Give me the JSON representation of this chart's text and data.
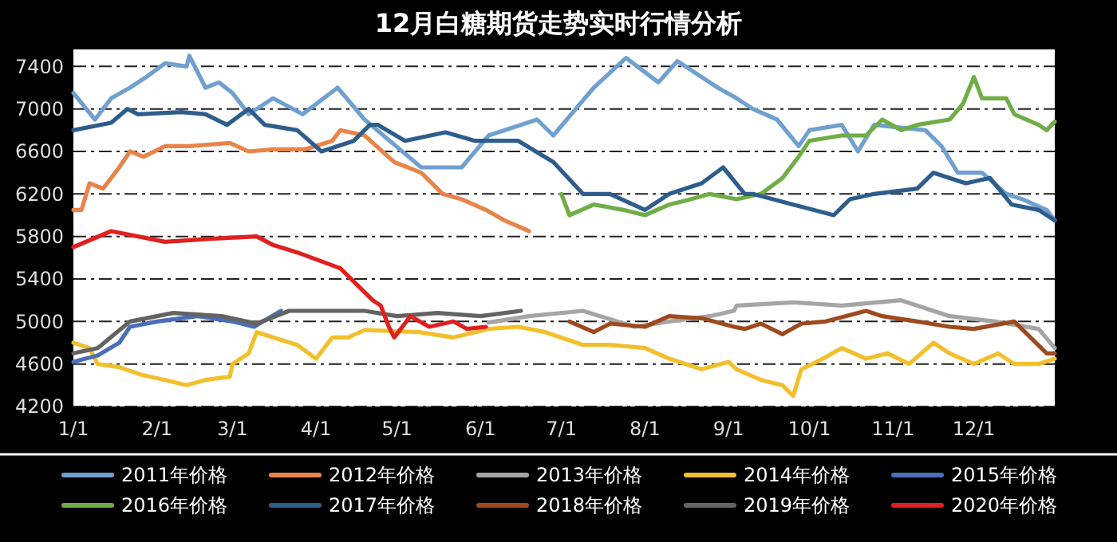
{
  "chart_data": {
    "type": "line",
    "title": "12月白糖期货走势实时行情分析",
    "xlim": [
      "--01-01",
      "--12-31"
    ],
    "xticks": [
      {
        "value": "--01-01",
        "label": "1/1"
      },
      {
        "value": "--02-01",
        "label": "2/1"
      },
      {
        "value": "--03-01",
        "label": "3/1"
      },
      {
        "value": "--04-01",
        "label": "4/1"
      },
      {
        "value": "--05-01",
        "label": "5/1"
      },
      {
        "value": "--06-01",
        "label": "6/1"
      },
      {
        "value": "--07-01",
        "label": "7/1"
      },
      {
        "value": "--08-01",
        "label": "8/1"
      },
      {
        "value": "--09-01",
        "label": "9/1"
      },
      {
        "value": "--10-01",
        "label": "10/1"
      },
      {
        "value": "--11-01",
        "label": "11/1"
      },
      {
        "value": "--12-01",
        "label": "12/1"
      }
    ],
    "ylim": [
      4200,
      7560
    ],
    "yticks": [
      4200,
      4600,
      5000,
      5400,
      5800,
      6200,
      6600,
      7000,
      7400
    ],
    "grid": "y",
    "legend": "bottom",
    "series": [
      {
        "name": "2011年价格",
        "color": "#6fa0d0",
        "x": [
          "--01-01",
          "--01-09",
          "--01-15",
          "--01-22",
          "--01-28",
          "--02-04",
          "--02-12",
          "--02-13",
          "--02-19",
          "--02-24",
          "--03-01",
          "--03-07",
          "--03-16",
          "--03-27",
          "--04-09",
          "--04-19",
          "--05-10",
          "--05-25",
          "--06-04",
          "--06-22",
          "--06-28",
          "--07-13",
          "--07-25",
          "--08-06",
          "--08-13",
          "--08-22",
          "--08-28",
          "--09-04",
          "--09-10",
          "--09-19",
          "--09-27",
          "--10-01",
          "--10-13",
          "--10-19",
          "--10-25",
          "--11-13",
          "--11-19",
          "--11-25",
          "--12-04",
          "--12-13",
          "--12-19",
          "--12-28",
          "--12-31"
        ],
        "values": [
          7150,
          6900,
          7100,
          7200,
          7300,
          7430,
          7400,
          7500,
          7200,
          7250,
          7150,
          6950,
          7100,
          6950,
          7200,
          6900,
          6450,
          6450,
          6750,
          6900,
          6750,
          7200,
          7480,
          7250,
          7450,
          7300,
          7200,
          7100,
          7000,
          6900,
          6650,
          6800,
          6850,
          6600,
          6850,
          6800,
          6650,
          6400,
          6400,
          6200,
          6150,
          6050,
          5950
        ]
      },
      {
        "name": "2012年价格",
        "color": "#e8844a",
        "x": [
          "--01-01",
          "--01-04",
          "--01-07",
          "--01-12",
          "--01-18",
          "--01-22",
          "--01-27",
          "--02-04",
          "--02-13",
          "--02-28",
          "--03-07",
          "--03-16",
          "--03-28",
          "--04-07",
          "--04-10",
          "--04-19",
          "--04-30",
          "--05-10",
          "--05-18",
          "--05-25",
          "--06-03",
          "--06-10",
          "--06-19"
        ],
        "values": [
          6050,
          6050,
          6300,
          6250,
          6450,
          6600,
          6550,
          6650,
          6650,
          6680,
          6600,
          6620,
          6620,
          6700,
          6800,
          6750,
          6500,
          6400,
          6200,
          6150,
          6050,
          5950,
          5850
        ]
      },
      {
        "name": "2013年价格",
        "color": "#a5a5a5",
        "x": [
          "--06-04",
          "--06-19",
          "--07-09",
          "--07-28",
          "--08-10",
          "--08-25",
          "--09-03",
          "--09-04",
          "--09-25",
          "--10-13",
          "--11-04",
          "--11-22",
          "--12-09",
          "--12-25",
          "--12-31"
        ],
        "values": [
          4990,
          5050,
          5100,
          4950,
          5000,
          5050,
          5100,
          5150,
          5180,
          5150,
          5200,
          5050,
          5000,
          4930,
          4750
        ]
      },
      {
        "name": "2014年价格",
        "color": "#f2c02c",
        "x": [
          "--01-01",
          "--01-07",
          "--01-10",
          "--01-18",
          "--01-26",
          "--02-04",
          "--02-12",
          "--02-19",
          "--02-28",
          "--03-01",
          "--03-07",
          "--03-10",
          "--03-16",
          "--03-25",
          "--04-01",
          "--04-07",
          "--04-13",
          "--04-19",
          "--05-09",
          "--05-22",
          "--06-04",
          "--06-15",
          "--06-25",
          "--07-09",
          "--07-19",
          "--08-01",
          "--08-10",
          "--08-22",
          "--09-01",
          "--09-04",
          "--09-13",
          "--09-21",
          "--09-25",
          "--09-28",
          "--10-06",
          "--10-13",
          "--10-22",
          "--10-30",
          "--11-07",
          "--11-16",
          "--11-22",
          "--12-01",
          "--12-10",
          "--12-16",
          "--12-25",
          "--12-31"
        ],
        "values": [
          4800,
          4750,
          4600,
          4570,
          4500,
          4450,
          4400,
          4450,
          4480,
          4600,
          4700,
          4900,
          4850,
          4780,
          4650,
          4850,
          4850,
          4920,
          4900,
          4850,
          4930,
          4950,
          4900,
          4780,
          4780,
          4750,
          4650,
          4550,
          4620,
          4550,
          4450,
          4400,
          4300,
          4550,
          4650,
          4750,
          4650,
          4700,
          4600,
          4800,
          4700,
          4600,
          4700,
          4600,
          4600,
          4650
        ]
      },
      {
        "name": "2015年价格",
        "color": "#4a6fb8",
        "x": [
          "--01-01",
          "--01-10",
          "--01-18",
          "--01-22",
          "--02-01",
          "--02-16",
          "--03-01",
          "--03-09",
          "--03-19"
        ],
        "values": [
          4620,
          4680,
          4800,
          4950,
          5000,
          5050,
          5000,
          4950,
          5100
        ]
      },
      {
        "name": "2016年价格",
        "color": "#70ad47",
        "x": [
          "--07-01",
          "--07-04",
          "--07-13",
          "--07-24",
          "--08-01",
          "--08-10",
          "--08-18",
          "--08-25",
          "--09-04",
          "--09-13",
          "--09-21",
          "--09-27",
          "--10-01",
          "--10-13",
          "--10-22",
          "--10-28",
          "--11-04",
          "--11-10",
          "--11-22",
          "--11-27",
          "--12-01",
          "--12-04",
          "--12-13",
          "--12-16",
          "--12-25",
          "--12-28",
          "--12-31"
        ],
        "values": [
          6200,
          6000,
          6100,
          6050,
          6000,
          6100,
          6150,
          6200,
          6150,
          6200,
          6350,
          6550,
          6700,
          6750,
          6750,
          6900,
          6800,
          6850,
          6900,
          7050,
          7300,
          7100,
          7100,
          6950,
          6850,
          6800,
          6880
        ]
      },
      {
        "name": "2017年价格",
        "color": "#2e5d8c",
        "x": [
          "--01-01",
          "--01-15",
          "--01-21",
          "--01-25",
          "--02-10",
          "--02-19",
          "--02-27",
          "--03-07",
          "--03-13",
          "--03-25",
          "--04-03",
          "--04-15",
          "--04-21",
          "--04-24",
          "--05-04",
          "--05-19",
          "--05-30",
          "--06-15",
          "--06-28",
          "--07-09",
          "--07-19",
          "--08-01",
          "--08-10",
          "--08-22",
          "--08-30",
          "--09-07",
          "--09-10",
          "--09-25",
          "--10-10",
          "--10-16",
          "--10-25",
          "--11-10",
          "--11-16",
          "--11-28",
          "--12-07",
          "--12-15",
          "--12-25",
          "--12-31"
        ],
        "values": [
          6800,
          6870,
          7000,
          6950,
          6970,
          6950,
          6850,
          7000,
          6850,
          6800,
          6600,
          6700,
          6850,
          6850,
          6700,
          6780,
          6700,
          6700,
          6500,
          6200,
          6200,
          6050,
          6200,
          6300,
          6450,
          6200,
          6200,
          6100,
          6000,
          6150,
          6200,
          6250,
          6400,
          6300,
          6350,
          6100,
          6050,
          5950
        ]
      },
      {
        "name": "2018年价格",
        "color": "#9e4a1e",
        "x": [
          "--07-04",
          "--07-13",
          "--07-19",
          "--08-01",
          "--08-10",
          "--08-22",
          "--09-03",
          "--09-07",
          "--09-13",
          "--09-21",
          "--09-28",
          "--10-07",
          "--10-22",
          "--10-28",
          "--11-10",
          "--11-22",
          "--12-01",
          "--12-16",
          "--12-22",
          "--12-28",
          "--12-31"
        ],
        "values": [
          5000,
          4900,
          4980,
          4950,
          5050,
          5030,
          4950,
          4930,
          4980,
          4880,
          4980,
          5000,
          5100,
          5050,
          5000,
          4950,
          4930,
          5000,
          4850,
          4700,
          4700
        ]
      },
      {
        "name": "2019年价格",
        "color": "#636363",
        "x": [
          "--01-01",
          "--01-10",
          "--01-22",
          "--02-07",
          "--02-25",
          "--03-10",
          "--03-22",
          "--04-07",
          "--04-19",
          "--05-01",
          "--05-16",
          "--06-01",
          "--06-16"
        ],
        "values": [
          4700,
          4750,
          5000,
          5080,
          5050,
          4980,
          5100,
          5100,
          5100,
          5050,
          5080,
          5050,
          5100
        ]
      },
      {
        "name": "2020年价格",
        "color": "#e02020",
        "x": [
          "--01-01",
          "--01-15",
          "--02-04",
          "--02-22",
          "--03-10",
          "--03-16",
          "--03-25",
          "--04-10",
          "--04-22",
          "--04-25",
          "--04-28",
          "--04-30",
          "--05-06",
          "--05-13",
          "--05-22",
          "--05-27",
          "--06-03"
        ],
        "values": [
          5700,
          5850,
          5750,
          5780,
          5800,
          5720,
          5650,
          5500,
          5200,
          5150,
          4950,
          4850,
          5050,
          4950,
          5000,
          4930,
          4950
        ]
      }
    ]
  }
}
